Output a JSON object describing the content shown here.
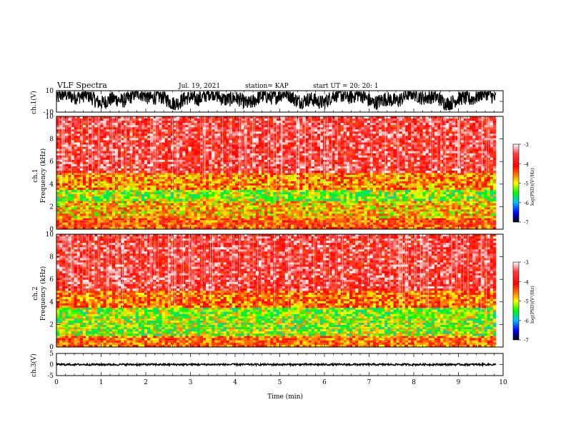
{
  "header": {
    "title": "VLF Spectra",
    "date": "Jul. 19, 2021",
    "station": "station= KAP",
    "start": "start UT =  20: 20: 1"
  },
  "colors": {
    "spectrogram": [
      "#000000",
      "#0000ff",
      "#00c0ff",
      "#00ff00",
      "#ffff00",
      "#ff8000",
      "#ff0000",
      "#ffffff"
    ]
  },
  "chart_data": [
    {
      "type": "line",
      "name": "ch1-waveform",
      "ylabel": "ch.1(V)",
      "ylim": [
        -10,
        10
      ],
      "ytick_labels": [
        "10",
        "-10"
      ],
      "xlim": [
        0,
        10
      ],
      "approx_range": [
        -8,
        9
      ]
    },
    {
      "type": "heatmap",
      "name": "ch1-spectrogram",
      "ylabel": "ch.1\nFrequency (kHz)",
      "ylim": [
        0,
        10
      ],
      "yticks": [
        0,
        2,
        4,
        6,
        8,
        10
      ],
      "xlim": [
        0,
        10
      ],
      "colorbar": {
        "label": "log(PSD)(V²/Hz)",
        "ticks": [
          "-3",
          "-4",
          "-5",
          "-6",
          "-7"
        ],
        "range": [
          -7,
          -3
        ]
      },
      "bands_khz": [
        {
          "from": 0,
          "to": 1,
          "level": -4.2
        },
        {
          "from": 1,
          "to": 2.5,
          "level": -4.6
        },
        {
          "from": 2.5,
          "to": 3.5,
          "level": -5.0
        },
        {
          "from": 3.5,
          "to": 5,
          "level": -4.4
        },
        {
          "from": 5,
          "to": 10,
          "level": -3.6
        }
      ]
    },
    {
      "type": "heatmap",
      "name": "ch2-spectrogram",
      "ylabel": "ch.2\nFrequency (kHz)",
      "ylim": [
        0,
        10
      ],
      "yticks": [
        0,
        2,
        4,
        6,
        8,
        10
      ],
      "xlim": [
        0,
        10
      ],
      "colorbar": {
        "label": "log(PSD)(V²/Hz)",
        "ticks": [
          "-3",
          "-4",
          "-5",
          "-6",
          "-7"
        ],
        "range": [
          -7,
          -3
        ]
      },
      "bands_khz": [
        {
          "from": 0,
          "to": 1,
          "level": -4.3
        },
        {
          "from": 1,
          "to": 3.5,
          "level": -5.0
        },
        {
          "from": 3.5,
          "to": 5,
          "level": -4.3
        },
        {
          "from": 5,
          "to": 10,
          "level": -3.6
        }
      ]
    },
    {
      "type": "line",
      "name": "ch3-waveform",
      "ylabel": "ch.3(V)",
      "ylim": [
        -5,
        5
      ],
      "ytick_labels": [
        "5",
        "0",
        "-5"
      ],
      "xlim": [
        0,
        10
      ],
      "approx_range": [
        -0.4,
        0.4
      ],
      "xlabel": "Time (min)",
      "xticks": [
        0,
        1,
        2,
        3,
        4,
        5,
        6,
        7,
        8,
        9,
        10
      ]
    }
  ]
}
